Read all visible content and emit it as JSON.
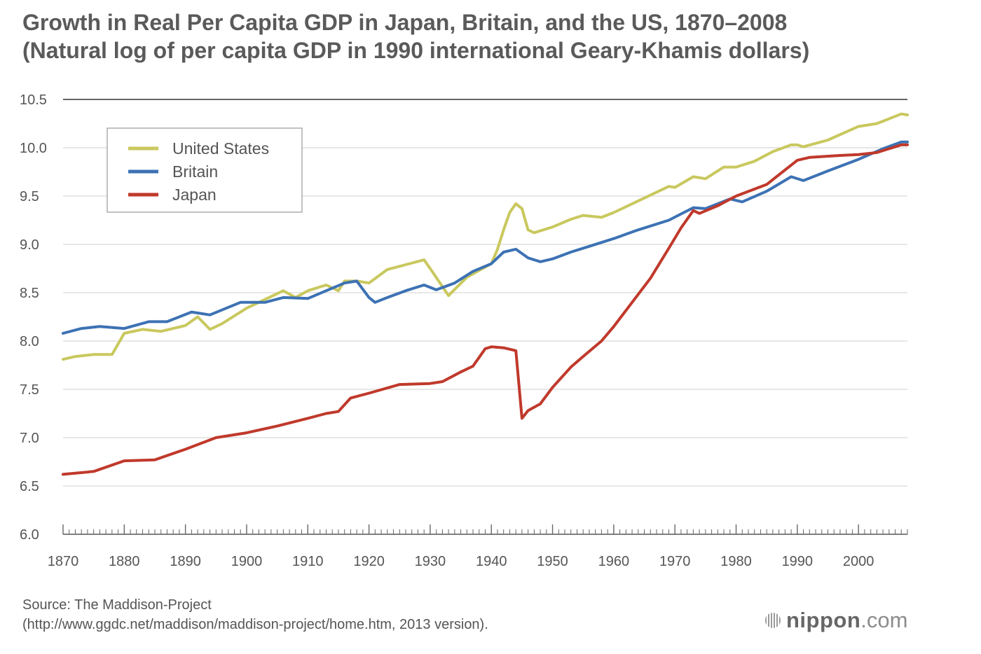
{
  "chart_data": {
    "type": "line",
    "title": "Growth in Real Per Capita GDP in Japan, Britain, and the US, 1870–2008",
    "subtitle": "(Natural log of per capita GDP in 1990 international Geary-Khamis dollars)",
    "xlabel": "",
    "ylabel": "",
    "xlim": [
      1870,
      2008
    ],
    "ylim": [
      6.0,
      10.5
    ],
    "x_ticks": [
      "1870",
      "1880",
      "1890",
      "1900",
      "1910",
      "1920",
      "1930",
      "1940",
      "1950",
      "1960",
      "1970",
      "1980",
      "1990",
      "2000"
    ],
    "y_ticks": [
      "6.0",
      "6.5",
      "7.0",
      "7.5",
      "8.0",
      "8.5",
      "9.0",
      "9.5",
      "10.0",
      "10.5"
    ],
    "grid": true,
    "legend_position": "top-left",
    "series": [
      {
        "name": "United States",
        "color": "#c9c85e",
        "points": [
          [
            1870,
            7.81
          ],
          [
            1872,
            7.84
          ],
          [
            1875,
            7.86
          ],
          [
            1878,
            7.86
          ],
          [
            1880,
            8.08
          ],
          [
            1883,
            8.12
          ],
          [
            1886,
            8.1
          ],
          [
            1890,
            8.16
          ],
          [
            1892,
            8.25
          ],
          [
            1894,
            8.12
          ],
          [
            1896,
            8.18
          ],
          [
            1900,
            8.34
          ],
          [
            1902,
            8.4
          ],
          [
            1906,
            8.52
          ],
          [
            1908,
            8.45
          ],
          [
            1910,
            8.52
          ],
          [
            1913,
            8.58
          ],
          [
            1915,
            8.52
          ],
          [
            1916,
            8.62
          ],
          [
            1918,
            8.62
          ],
          [
            1920,
            8.6
          ],
          [
            1923,
            8.74
          ],
          [
            1926,
            8.79
          ],
          [
            1929,
            8.84
          ],
          [
            1930,
            8.75
          ],
          [
            1933,
            8.47
          ],
          [
            1936,
            8.66
          ],
          [
            1940,
            8.8
          ],
          [
            1941,
            8.95
          ],
          [
            1942,
            9.15
          ],
          [
            1943,
            9.33
          ],
          [
            1944,
            9.42
          ],
          [
            1945,
            9.37
          ],
          [
            1946,
            9.15
          ],
          [
            1947,
            9.12
          ],
          [
            1950,
            9.18
          ],
          [
            1953,
            9.26
          ],
          [
            1955,
            9.3
          ],
          [
            1958,
            9.28
          ],
          [
            1960,
            9.33
          ],
          [
            1965,
            9.48
          ],
          [
            1969,
            9.6
          ],
          [
            1970,
            9.59
          ],
          [
            1973,
            9.7
          ],
          [
            1975,
            9.68
          ],
          [
            1978,
            9.8
          ],
          [
            1980,
            9.8
          ],
          [
            1983,
            9.86
          ],
          [
            1986,
            9.96
          ],
          [
            1989,
            10.03
          ],
          [
            1990,
            10.03
          ],
          [
            1991,
            10.01
          ],
          [
            1995,
            10.08
          ],
          [
            2000,
            10.22
          ],
          [
            2003,
            10.25
          ],
          [
            2007,
            10.35
          ],
          [
            2008,
            10.34
          ]
        ]
      },
      {
        "name": "Britain",
        "color": "#3d72b4",
        "points": [
          [
            1870,
            8.08
          ],
          [
            1873,
            8.13
          ],
          [
            1876,
            8.15
          ],
          [
            1880,
            8.13
          ],
          [
            1884,
            8.2
          ],
          [
            1887,
            8.2
          ],
          [
            1891,
            8.3
          ],
          [
            1894,
            8.27
          ],
          [
            1899,
            8.4
          ],
          [
            1903,
            8.4
          ],
          [
            1906,
            8.45
          ],
          [
            1910,
            8.44
          ],
          [
            1913,
            8.52
          ],
          [
            1916,
            8.6
          ],
          [
            1918,
            8.62
          ],
          [
            1920,
            8.45
          ],
          [
            1921,
            8.4
          ],
          [
            1923,
            8.45
          ],
          [
            1926,
            8.52
          ],
          [
            1929,
            8.58
          ],
          [
            1931,
            8.53
          ],
          [
            1934,
            8.6
          ],
          [
            1937,
            8.72
          ],
          [
            1940,
            8.8
          ],
          [
            1942,
            8.92
          ],
          [
            1944,
            8.95
          ],
          [
            1946,
            8.86
          ],
          [
            1948,
            8.82
          ],
          [
            1950,
            8.85
          ],
          [
            1953,
            8.92
          ],
          [
            1956,
            8.98
          ],
          [
            1960,
            9.06
          ],
          [
            1964,
            9.15
          ],
          [
            1969,
            9.25
          ],
          [
            1973,
            9.38
          ],
          [
            1975,
            9.37
          ],
          [
            1979,
            9.47
          ],
          [
            1981,
            9.44
          ],
          [
            1985,
            9.55
          ],
          [
            1989,
            9.7
          ],
          [
            1991,
            9.66
          ],
          [
            1995,
            9.76
          ],
          [
            2000,
            9.88
          ],
          [
            2004,
            9.99
          ],
          [
            2007,
            10.06
          ],
          [
            2008,
            10.06
          ]
        ]
      },
      {
        "name": "Japan",
        "color": "#c0392b",
        "points": [
          [
            1870,
            6.62
          ],
          [
            1875,
            6.65
          ],
          [
            1880,
            6.76
          ],
          [
            1885,
            6.77
          ],
          [
            1890,
            6.88
          ],
          [
            1895,
            7.0
          ],
          [
            1900,
            7.05
          ],
          [
            1905,
            7.12
          ],
          [
            1910,
            7.2
          ],
          [
            1913,
            7.25
          ],
          [
            1915,
            7.27
          ],
          [
            1917,
            7.41
          ],
          [
            1920,
            7.46
          ],
          [
            1925,
            7.55
          ],
          [
            1930,
            7.56
          ],
          [
            1932,
            7.58
          ],
          [
            1935,
            7.68
          ],
          [
            1937,
            7.74
          ],
          [
            1939,
            7.92
          ],
          [
            1940,
            7.94
          ],
          [
            1942,
            7.93
          ],
          [
            1944,
            7.9
          ],
          [
            1945,
            7.2
          ],
          [
            1946,
            7.28
          ],
          [
            1948,
            7.35
          ],
          [
            1950,
            7.52
          ],
          [
            1953,
            7.73
          ],
          [
            1955,
            7.84
          ],
          [
            1958,
            8.0
          ],
          [
            1960,
            8.15
          ],
          [
            1963,
            8.4
          ],
          [
            1966,
            8.65
          ],
          [
            1969,
            8.96
          ],
          [
            1971,
            9.17
          ],
          [
            1973,
            9.35
          ],
          [
            1974,
            9.32
          ],
          [
            1977,
            9.4
          ],
          [
            1980,
            9.5
          ],
          [
            1985,
            9.62
          ],
          [
            1990,
            9.87
          ],
          [
            1992,
            9.9
          ],
          [
            1997,
            9.92
          ],
          [
            2000,
            9.93
          ],
          [
            2003,
            9.95
          ],
          [
            2007,
            10.03
          ],
          [
            2008,
            10.03
          ]
        ]
      }
    ]
  },
  "source": {
    "line1": "Source: The Maddison-Project",
    "line2": "(http://www.ggdc.net/maddison/maddison-project/home.htm, 2013 version)."
  },
  "logo": {
    "name": "nippon",
    "suffix": ".com"
  }
}
